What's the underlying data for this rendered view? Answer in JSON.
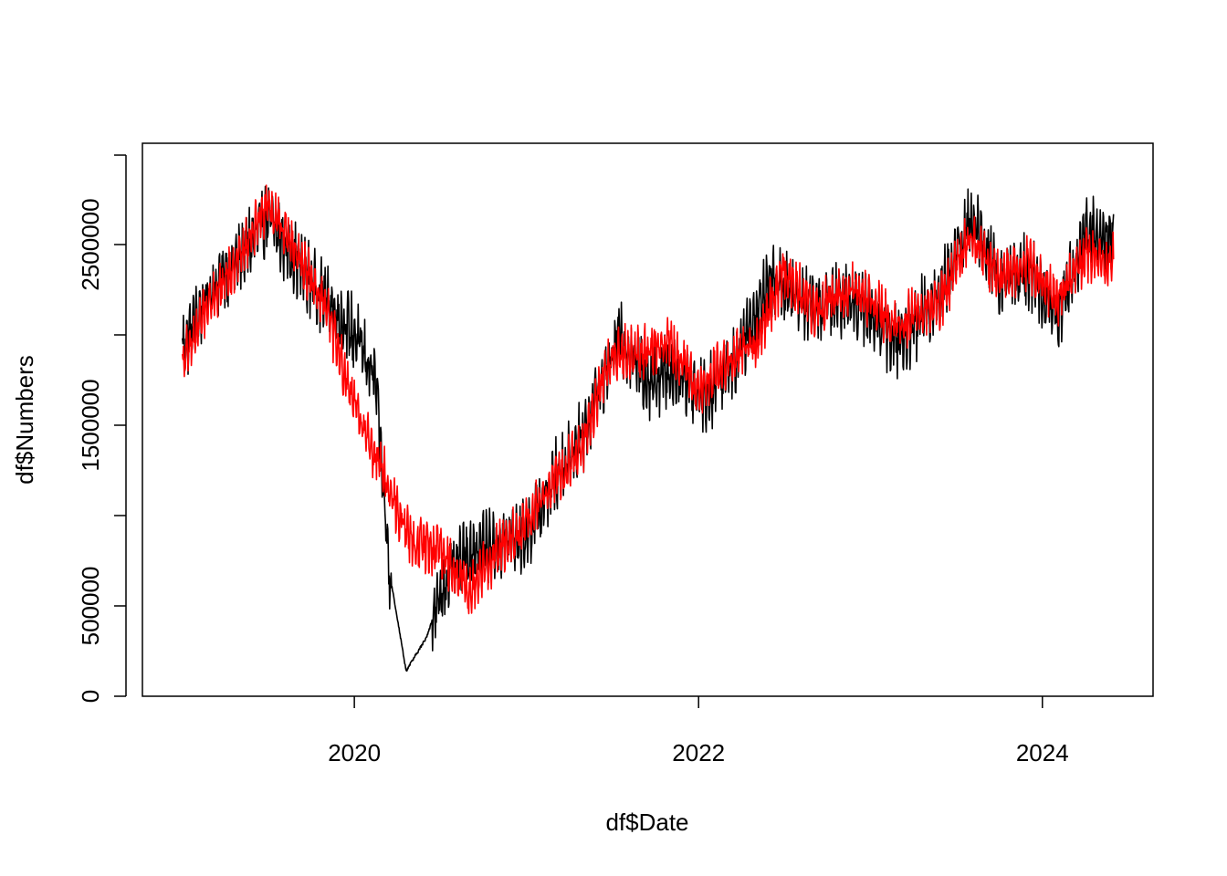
{
  "chart_data": {
    "type": "line",
    "title": "",
    "xlabel": "df$Date",
    "ylabel": "df$Numbers",
    "x_range": [
      "2019-01-01",
      "2024-05-31"
    ],
    "xlim": [
      "2018-10-08",
      "2024-08-23"
    ],
    "ylim": [
      0,
      3000000
    ],
    "x_ticks": [
      {
        "date": "2020-01-01",
        "label": "2020"
      },
      {
        "date": "2022-01-01",
        "label": "2022"
      },
      {
        "date": "2024-01-01",
        "label": "2024"
      }
    ],
    "y_ticks": [
      {
        "value": 0,
        "label": "0"
      },
      {
        "value": 500000,
        "label": "500000"
      },
      {
        "value": 1000000,
        "label": ""
      },
      {
        "value": 1500000,
        "label": "1500000"
      },
      {
        "value": 2000000,
        "label": ""
      },
      {
        "value": 2500000,
        "label": "2500000"
      }
    ],
    "grid": false,
    "legend": "none",
    "series": [
      {
        "color": "#000000",
        "trend": [
          {
            "date": "2019-01-01",
            "value": 1930000
          },
          {
            "date": "2019-03-01",
            "value": 2250000
          },
          {
            "date": "2019-05-01",
            "value": 2420000
          },
          {
            "date": "2019-07-01",
            "value": 2650000
          },
          {
            "date": "2019-09-01",
            "value": 2400000
          },
          {
            "date": "2019-11-01",
            "value": 2200000
          },
          {
            "date": "2020-01-01",
            "value": 2000000
          },
          {
            "date": "2020-02-15",
            "value": 1750000
          },
          {
            "date": "2020-03-15",
            "value": 700000
          },
          {
            "date": "2020-04-20",
            "value": 140000
          },
          {
            "date": "2020-06-01",
            "value": 320000
          },
          {
            "date": "2020-07-15",
            "value": 650000
          },
          {
            "date": "2020-09-01",
            "value": 800000
          },
          {
            "date": "2020-11-01",
            "value": 850000
          },
          {
            "date": "2021-01-01",
            "value": 900000
          },
          {
            "date": "2021-03-01",
            "value": 1200000
          },
          {
            "date": "2021-05-01",
            "value": 1450000
          },
          {
            "date": "2021-07-15",
            "value": 2000000
          },
          {
            "date": "2021-09-15",
            "value": 1750000
          },
          {
            "date": "2021-11-15",
            "value": 1800000
          },
          {
            "date": "2022-01-15",
            "value": 1650000
          },
          {
            "date": "2022-03-15",
            "value": 1850000
          },
          {
            "date": "2022-06-01",
            "value": 2300000
          },
          {
            "date": "2022-09-01",
            "value": 2150000
          },
          {
            "date": "2022-12-01",
            "value": 2200000
          },
          {
            "date": "2023-03-01",
            "value": 1950000
          },
          {
            "date": "2023-06-01",
            "value": 2250000
          },
          {
            "date": "2023-08-01",
            "value": 2650000
          },
          {
            "date": "2023-10-01",
            "value": 2300000
          },
          {
            "date": "2023-12-01",
            "value": 2350000
          },
          {
            "date": "2024-02-01",
            "value": 2100000
          },
          {
            "date": "2024-04-01",
            "value": 2550000
          },
          {
            "date": "2024-05-31",
            "value": 2550000
          }
        ],
        "spread": 200000
      },
      {
        "color": "#ff0000",
        "trend": [
          {
            "date": "2019-01-01",
            "value": 1850000
          },
          {
            "date": "2019-03-01",
            "value": 2200000
          },
          {
            "date": "2019-05-01",
            "value": 2420000
          },
          {
            "date": "2019-07-01",
            "value": 2730000
          },
          {
            "date": "2019-09-01",
            "value": 2450000
          },
          {
            "date": "2019-11-01",
            "value": 2150000
          },
          {
            "date": "2020-01-01",
            "value": 1600000
          },
          {
            "date": "2020-03-01",
            "value": 1250000
          },
          {
            "date": "2020-05-01",
            "value": 850000
          },
          {
            "date": "2020-07-01",
            "value": 820000
          },
          {
            "date": "2020-09-01",
            "value": 580000
          },
          {
            "date": "2020-11-01",
            "value": 800000
          },
          {
            "date": "2021-01-01",
            "value": 950000
          },
          {
            "date": "2021-03-01",
            "value": 1200000
          },
          {
            "date": "2021-05-01",
            "value": 1400000
          },
          {
            "date": "2021-07-01",
            "value": 1900000
          },
          {
            "date": "2021-09-01",
            "value": 1900000
          },
          {
            "date": "2021-11-01",
            "value": 1950000
          },
          {
            "date": "2022-01-01",
            "value": 1700000
          },
          {
            "date": "2022-03-01",
            "value": 1850000
          },
          {
            "date": "2022-05-01",
            "value": 1950000
          },
          {
            "date": "2022-07-01",
            "value": 2350000
          },
          {
            "date": "2022-09-01",
            "value": 2150000
          },
          {
            "date": "2022-12-01",
            "value": 2250000
          },
          {
            "date": "2023-03-01",
            "value": 2050000
          },
          {
            "date": "2023-06-01",
            "value": 2200000
          },
          {
            "date": "2023-08-01",
            "value": 2550000
          },
          {
            "date": "2023-10-01",
            "value": 2300000
          },
          {
            "date": "2023-12-01",
            "value": 2400000
          },
          {
            "date": "2024-02-01",
            "value": 2200000
          },
          {
            "date": "2024-04-01",
            "value": 2450000
          },
          {
            "date": "2024-05-31",
            "value": 2400000
          }
        ],
        "spread": 150000
      }
    ]
  }
}
